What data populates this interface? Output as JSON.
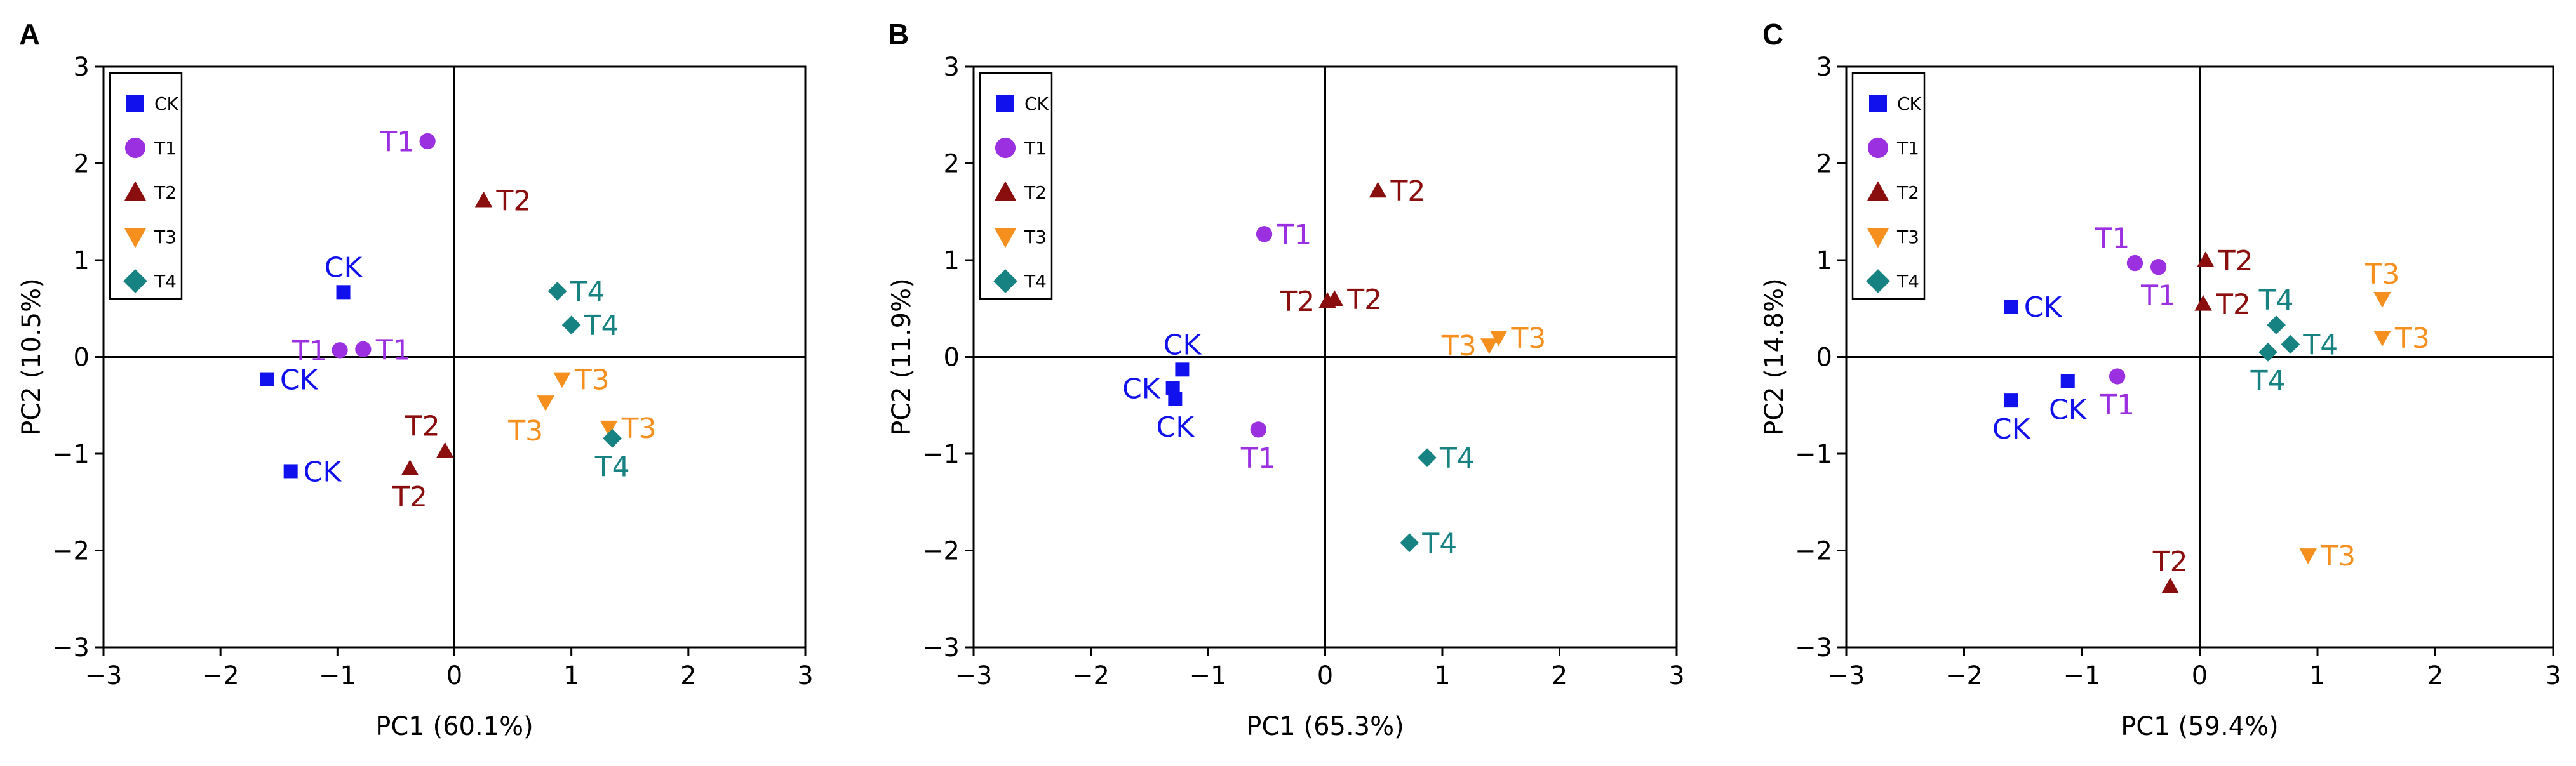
{
  "colors": {
    "CK": "#1111ee",
    "T1": "#9b30e0",
    "T2": "#8b0e0e",
    "T3": "#f5901e",
    "T4": "#168282",
    "axis": "#000000"
  },
  "legend_entries": [
    {
      "key": "CK",
      "label": "CK",
      "marker": "square"
    },
    {
      "key": "T1",
      "label": "T1",
      "marker": "circle"
    },
    {
      "key": "T2",
      "label": "T2",
      "marker": "triangle-up"
    },
    {
      "key": "T3",
      "label": "T3",
      "marker": "triangle-down"
    },
    {
      "key": "T4",
      "label": "T4",
      "marker": "diamond"
    }
  ],
  "chart_data": [
    {
      "type": "scatter",
      "panel": "A",
      "xlabel": "PC1 (60.1%)",
      "ylabel": "PC2 (10.5%)",
      "xlim": [
        -3,
        3
      ],
      "ylim": [
        -3,
        3
      ],
      "xticks": [
        "−3",
        "−2",
        "−1",
        "0",
        "1",
        "2",
        "3"
      ],
      "yticks": [
        "−3",
        "−2",
        "−1",
        "0",
        "1",
        "2",
        "3"
      ],
      "legend": "top-left",
      "series": [
        {
          "name": "CK",
          "points": [
            {
              "x": -0.95,
              "y": 0.67,
              "label": "CK",
              "label_pos": "above"
            },
            {
              "x": -1.6,
              "y": -0.23,
              "label": "CK",
              "label_pos": "right"
            },
            {
              "x": -1.4,
              "y": -1.18,
              "label": "CK",
              "label_pos": "right"
            }
          ]
        },
        {
          "name": "T1",
          "points": [
            {
              "x": -0.23,
              "y": 2.23,
              "label": "T1",
              "label_pos": "left"
            },
            {
              "x": -0.98,
              "y": 0.07,
              "label": "T1",
              "label_pos": "left"
            },
            {
              "x": -0.78,
              "y": 0.08,
              "label": "T1",
              "label_pos": "right"
            }
          ]
        },
        {
          "name": "T2",
          "points": [
            {
              "x": 0.25,
              "y": 1.62,
              "label": "T2",
              "label_pos": "right"
            },
            {
              "x": -0.08,
              "y": -0.97,
              "label": "T2",
              "label_pos": "above-left"
            },
            {
              "x": -0.38,
              "y": -1.15,
              "label": "T2",
              "label_pos": "below"
            }
          ]
        },
        {
          "name": "T3",
          "points": [
            {
              "x": 0.92,
              "y": -0.23,
              "label": "T3",
              "label_pos": "right"
            },
            {
              "x": 0.78,
              "y": -0.47,
              "label": "T3",
              "label_pos": "below-left"
            },
            {
              "x": 1.32,
              "y": -0.73,
              "label": "T3",
              "label_pos": "right"
            }
          ]
        },
        {
          "name": "T4",
          "points": [
            {
              "x": 0.88,
              "y": 0.68,
              "label": "T4",
              "label_pos": "right"
            },
            {
              "x": 1.0,
              "y": 0.33,
              "label": "T4",
              "label_pos": "right"
            },
            {
              "x": 1.35,
              "y": -0.84,
              "label": "T4",
              "label_pos": "below"
            }
          ]
        }
      ]
    },
    {
      "type": "scatter",
      "panel": "B",
      "xlabel": "PC1 (65.3%)",
      "ylabel": "PC2 (11.9%)",
      "xlim": [
        -3,
        3
      ],
      "ylim": [
        -3,
        3
      ],
      "xticks": [
        "−3",
        "−2",
        "−1",
        "0",
        "1",
        "2",
        "3"
      ],
      "yticks": [
        "−3",
        "−2",
        "−1",
        "0",
        "1",
        "2",
        "3"
      ],
      "legend": "top-left",
      "series": [
        {
          "name": "CK",
          "points": [
            {
              "x": -1.22,
              "y": -0.13,
              "label": "CK",
              "label_pos": "above"
            },
            {
              "x": -1.3,
              "y": -0.32,
              "label": "CK",
              "label_pos": "left"
            },
            {
              "x": -1.28,
              "y": -0.43,
              "label": "CK",
              "label_pos": "below"
            }
          ]
        },
        {
          "name": "T1",
          "points": [
            {
              "x": -0.52,
              "y": 1.27,
              "label": "T1",
              "label_pos": "right"
            },
            {
              "x": -0.57,
              "y": -0.75,
              "label": "T1",
              "label_pos": "below"
            }
          ]
        },
        {
          "name": "T2",
          "points": [
            {
              "x": 0.45,
              "y": 1.72,
              "label": "T2",
              "label_pos": "right"
            },
            {
              "x": 0.02,
              "y": 0.58,
              "label": "T2",
              "label_pos": "left"
            },
            {
              "x": 0.08,
              "y": 0.6,
              "label": "T2",
              "label_pos": "right"
            }
          ]
        },
        {
          "name": "T3",
          "points": [
            {
              "x": 1.4,
              "y": 0.12,
              "label": "T3",
              "label_pos": "left"
            },
            {
              "x": 1.48,
              "y": 0.2,
              "label": "T3",
              "label_pos": "right"
            }
          ]
        },
        {
          "name": "T4",
          "points": [
            {
              "x": 0.87,
              "y": -1.04,
              "label": "T4",
              "label_pos": "right"
            },
            {
              "x": 0.72,
              "y": -1.92,
              "label": "T4",
              "label_pos": "right"
            }
          ]
        }
      ]
    },
    {
      "type": "scatter",
      "panel": "C",
      "xlabel": "PC1 (59.4%)",
      "ylabel": "PC2 (14.8%)",
      "xlim": [
        -3,
        3
      ],
      "ylim": [
        -3,
        3
      ],
      "xticks": [
        "−3",
        "−2",
        "−1",
        "0",
        "1",
        "2",
        "3"
      ],
      "yticks": [
        "−3",
        "−2",
        "−1",
        "0",
        "1",
        "2",
        "3"
      ],
      "legend": "top-left",
      "series": [
        {
          "name": "CK",
          "points": [
            {
              "x": -1.6,
              "y": 0.52,
              "label": "CK",
              "label_pos": "right"
            },
            {
              "x": -1.6,
              "y": -0.45,
              "label": "CK",
              "label_pos": "below"
            },
            {
              "x": -1.12,
              "y": -0.25,
              "label": "CK",
              "label_pos": "below"
            }
          ]
        },
        {
          "name": "T1",
          "points": [
            {
              "x": -0.55,
              "y": 0.97,
              "label": "T1",
              "label_pos": "above-left"
            },
            {
              "x": -0.35,
              "y": 0.93,
              "label": "T1",
              "label_pos": "below"
            },
            {
              "x": -0.7,
              "y": -0.2,
              "label": "T1",
              "label_pos": "below"
            }
          ]
        },
        {
          "name": "T2",
          "points": [
            {
              "x": 0.05,
              "y": 1.0,
              "label": "T2",
              "label_pos": "right"
            },
            {
              "x": 0.03,
              "y": 0.55,
              "label": "T2",
              "label_pos": "right"
            },
            {
              "x": -0.25,
              "y": -2.37,
              "label": "T2",
              "label_pos": "above"
            }
          ]
        },
        {
          "name": "T3",
          "points": [
            {
              "x": 1.55,
              "y": 0.6,
              "label": "T3",
              "label_pos": "above"
            },
            {
              "x": 1.55,
              "y": 0.2,
              "label": "T3",
              "label_pos": "right"
            },
            {
              "x": 0.92,
              "y": -2.05,
              "label": "T3",
              "label_pos": "right"
            }
          ]
        },
        {
          "name": "T4",
          "points": [
            {
              "x": 0.65,
              "y": 0.33,
              "label": "T4",
              "label_pos": "above"
            },
            {
              "x": 0.77,
              "y": 0.13,
              "label": "T4",
              "label_pos": "right"
            },
            {
              "x": 0.58,
              "y": 0.05,
              "label": "T4",
              "label_pos": "below"
            }
          ]
        }
      ]
    }
  ]
}
